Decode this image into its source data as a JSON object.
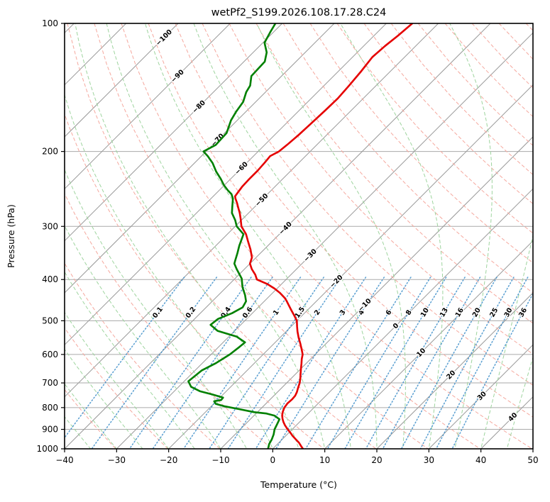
{
  "chart_data": {
    "type": "line",
    "variant": "skew-t-log-p",
    "title": "wetPf2_S199.2026.108.17.28.C24",
    "xlabel": "Temperature (°C)",
    "ylabel": "Pressure (hPa)",
    "xlim": [
      -40,
      50
    ],
    "pressure_lim": [
      100,
      1000
    ],
    "x_ticks": [
      -40,
      -30,
      -20,
      -10,
      0,
      10,
      20,
      30,
      40,
      50
    ],
    "y_ticks": [
      100,
      200,
      300,
      400,
      500,
      600,
      700,
      800,
      900,
      1000
    ],
    "grid": true,
    "skew_degrees": 45,
    "isotherms": {
      "t_start": -120,
      "t_end": 50,
      "step": 10,
      "labels": [
        {
          "t": -100,
          "p": 108
        },
        {
          "t": -90,
          "p": 133
        },
        {
          "t": -80,
          "p": 157
        },
        {
          "t": -70,
          "p": 188
        },
        {
          "t": -60,
          "p": 219
        },
        {
          "t": -50,
          "p": 260
        },
        {
          "t": -40,
          "p": 303
        },
        {
          "t": -30,
          "p": 351
        },
        {
          "t": -20,
          "p": 404
        },
        {
          "t": -10,
          "p": 459
        },
        {
          "t": 0,
          "p": 514
        },
        {
          "t": 10,
          "p": 594
        },
        {
          "t": 20,
          "p": 670
        },
        {
          "t": 30,
          "p": 751
        },
        {
          "t": 40,
          "p": 842
        }
      ]
    },
    "dry_adiabats": {
      "theta_k_start": 243,
      "theta_k_end": 463,
      "step_k": 10
    },
    "moist_adiabats": {
      "t0_c_start": -55,
      "t0_c_end": 45,
      "step_c": 5
    },
    "mixing_ratio": {
      "values_g_kg": [
        0.1,
        0.2,
        0.4,
        0.6,
        1,
        1.5,
        2,
        3,
        4,
        6,
        8,
        10,
        13,
        16,
        20,
        25,
        30,
        36
      ],
      "label_pressure": 478,
      "p_top": 395,
      "p_bottom": 1045
    },
    "series": [
      {
        "name": "temperature",
        "color": "#e50000",
        "points": [
          [
            1000,
            5.8
          ],
          [
            985,
            4.9
          ],
          [
            968,
            3.9
          ],
          [
            950,
            2.6
          ],
          [
            932,
            1.3
          ],
          [
            915,
            0.2
          ],
          [
            898,
            -1.0
          ],
          [
            880,
            -2.2
          ],
          [
            865,
            -3.1
          ],
          [
            850,
            -3.9
          ],
          [
            835,
            -4.6
          ],
          [
            818,
            -5.2
          ],
          [
            800,
            -5.7
          ],
          [
            782,
            -5.9
          ],
          [
            765,
            -5.8
          ],
          [
            750,
            -5.9
          ],
          [
            735,
            -6.3
          ],
          [
            718,
            -6.9
          ],
          [
            700,
            -7.5
          ],
          [
            682,
            -8.3
          ],
          [
            664,
            -9.2
          ],
          [
            648,
            -10.0
          ],
          [
            630,
            -10.9
          ],
          [
            615,
            -11.7
          ],
          [
            600,
            -12.4
          ],
          [
            582,
            -13.7
          ],
          [
            565,
            -15.0
          ],
          [
            548,
            -16.4
          ],
          [
            530,
            -17.8
          ],
          [
            515,
            -18.9
          ],
          [
            500,
            -20.0
          ],
          [
            487,
            -21.4
          ],
          [
            473,
            -23.0
          ],
          [
            460,
            -24.5
          ],
          [
            449,
            -25.8
          ],
          [
            442,
            -26.7
          ],
          [
            430,
            -28.6
          ],
          [
            420,
            -30.5
          ],
          [
            410,
            -32.7
          ],
          [
            400,
            -35.6
          ],
          [
            390,
            -36.8
          ],
          [
            378,
            -38.6
          ],
          [
            367,
            -40.0
          ],
          [
            355,
            -40.8
          ],
          [
            340,
            -42.6
          ],
          [
            325,
            -44.7
          ],
          [
            313,
            -46.4
          ],
          [
            300,
            -48.8
          ],
          [
            288,
            -50.4
          ],
          [
            279,
            -51.7
          ],
          [
            270,
            -53.2
          ],
          [
            264,
            -54.2
          ],
          [
            258,
            -55.3
          ],
          [
            255,
            -55.8
          ],
          [
            250,
            -56.0
          ],
          [
            242,
            -56.3
          ],
          [
            232,
            -56.4
          ],
          [
            222,
            -56.4
          ],
          [
            212,
            -56.6
          ],
          [
            205,
            -56.8
          ],
          [
            200,
            -56.0
          ],
          [
            193,
            -55.7
          ],
          [
            183,
            -55.4
          ],
          [
            172,
            -55.2
          ],
          [
            160,
            -55.0
          ],
          [
            150,
            -54.9
          ],
          [
            140,
            -55.2
          ],
          [
            130,
            -55.6
          ],
          [
            120,
            -56.2
          ],
          [
            113,
            -55.9
          ],
          [
            107,
            -55.4
          ],
          [
            100,
            -55.0
          ]
        ]
      },
      {
        "name": "dewpoint",
        "color": "#008000",
        "points": [
          [
            1000,
            -0.9
          ],
          [
            975,
            -1.6
          ],
          [
            950,
            -2.0
          ],
          [
            925,
            -2.6
          ],
          [
            900,
            -3.4
          ],
          [
            875,
            -3.9
          ],
          [
            852,
            -4.4
          ],
          [
            836,
            -6.0
          ],
          [
            826,
            -8.0
          ],
          [
            820,
            -10.6
          ],
          [
            807,
            -14.0
          ],
          [
            795,
            -17.3
          ],
          [
            784,
            -19.6
          ],
          [
            773,
            -20.4
          ],
          [
            768,
            -19.3
          ],
          [
            758,
            -19.4
          ],
          [
            745,
            -22.1
          ],
          [
            732,
            -25.1
          ],
          [
            715,
            -27.6
          ],
          [
            694,
            -29.2
          ],
          [
            654,
            -28.7
          ],
          [
            629,
            -27.4
          ],
          [
            600,
            -26.4
          ],
          [
            576,
            -26.0
          ],
          [
            562,
            -25.8
          ],
          [
            545,
            -28.5
          ],
          [
            528,
            -33.3
          ],
          [
            511,
            -35.8
          ],
          [
            495,
            -35.5
          ],
          [
            480,
            -33.9
          ],
          [
            465,
            -33.0
          ],
          [
            450,
            -33.5
          ],
          [
            435,
            -34.9
          ],
          [
            417,
            -36.9
          ],
          [
            398,
            -38.7
          ],
          [
            378,
            -41.5
          ],
          [
            367,
            -43.0
          ],
          [
            360,
            -43.5
          ],
          [
            347,
            -44.4
          ],
          [
            333,
            -45.5
          ],
          [
            313,
            -46.9
          ],
          [
            300,
            -49.7
          ],
          [
            290,
            -51.2
          ],
          [
            279,
            -53.2
          ],
          [
            270,
            -54.3
          ],
          [
            258,
            -55.8
          ],
          [
            252,
            -56.9
          ],
          [
            247,
            -58.3
          ],
          [
            240,
            -60.1
          ],
          [
            232,
            -61.9
          ],
          [
            223,
            -64.2
          ],
          [
            213,
            -66.5
          ],
          [
            205,
            -68.8
          ],
          [
            200,
            -70.5
          ],
          [
            193,
            -69.4
          ],
          [
            181,
            -69.6
          ],
          [
            169,
            -71.2
          ],
          [
            161,
            -71.9
          ],
          [
            153,
            -72.4
          ],
          [
            145,
            -73.7
          ],
          [
            140,
            -74.2
          ],
          [
            133,
            -75.8
          ],
          [
            123,
            -76.0
          ],
          [
            117,
            -77.4
          ],
          [
            111,
            -79.7
          ],
          [
            105,
            -80.6
          ],
          [
            100,
            -81.3
          ]
        ]
      }
    ],
    "colors": {
      "isobar": "#aaaaaa",
      "isotherm": "#999999",
      "dry_adiabat": "#f5a89e",
      "moist_adiabat": "#9ed49e",
      "mixing_ratio": "#3d8ec9",
      "label_negative": "#1f77b4",
      "label_zero": "#808080",
      "label_positive": "#d62728",
      "spine": "#000000"
    }
  }
}
